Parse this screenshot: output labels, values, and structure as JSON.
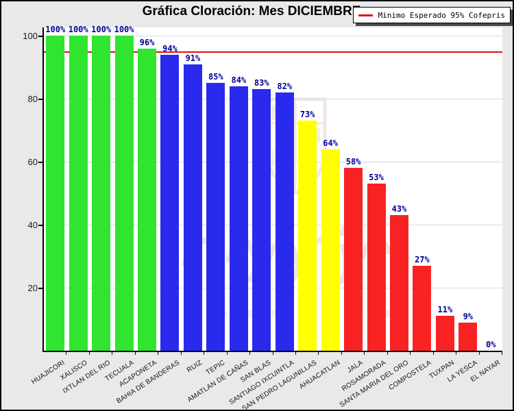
{
  "title": "Gráfica Cloración: Mes DICIEMBRE",
  "legend": {
    "label": "Minimo Esperado 95% Cofepris",
    "line_color": "#e01010"
  },
  "watermark": {
    "name": "faded-agency-seal-logo"
  },
  "chart_data": {
    "type": "bar",
    "title": "Gráfica Cloración: Mes DICIEMBRE",
    "xlabel": "",
    "ylabel": "",
    "ylim": [
      0,
      100
    ],
    "yticks": [
      20,
      40,
      60,
      80,
      100
    ],
    "grid": true,
    "legend_position": "top-right",
    "value_suffix": "%",
    "target_line": {
      "value": 95,
      "color": "#e01010",
      "label": "Minimo Esperado 95% Cofepris"
    },
    "palette": {
      "green": "#2fe52f",
      "blue": "#2a2aef",
      "yellow": "#ffff00",
      "red": "#f92222"
    },
    "points": [
      {
        "municipality": "HUAJICORI",
        "value": 100,
        "color": "green"
      },
      {
        "municipality": "XALISCO",
        "value": 100,
        "color": "green"
      },
      {
        "municipality": "IXTLAN DEL RIO",
        "value": 100,
        "color": "green"
      },
      {
        "municipality": "TECUALA",
        "value": 100,
        "color": "green"
      },
      {
        "municipality": "ACAPONETA",
        "value": 96,
        "color": "green"
      },
      {
        "municipality": "BAHIA DE BANDERAS",
        "value": 94,
        "color": "blue"
      },
      {
        "municipality": "RUIZ",
        "value": 91,
        "color": "blue"
      },
      {
        "municipality": "TEPIC",
        "value": 85,
        "color": "blue"
      },
      {
        "municipality": "AMATLAN DE CAÑAS",
        "value": 84,
        "color": "blue"
      },
      {
        "municipality": "SAN BLAS",
        "value": 83,
        "color": "blue"
      },
      {
        "municipality": "SANTIAGO IXCUINTLA",
        "value": 82,
        "color": "blue"
      },
      {
        "municipality": "SAN PEDRO LAGUNILLAS",
        "value": 73,
        "color": "yellow"
      },
      {
        "municipality": "AHUACATLAN",
        "value": 64,
        "color": "yellow"
      },
      {
        "municipality": "JALA",
        "value": 58,
        "color": "red"
      },
      {
        "municipality": "ROSAMORADA",
        "value": 53,
        "color": "red"
      },
      {
        "municipality": "SANTA MARIA DEL ORO",
        "value": 43,
        "color": "red"
      },
      {
        "municipality": "COMPOSTELA",
        "value": 27,
        "color": "red"
      },
      {
        "municipality": "TUXPAN",
        "value": 11,
        "color": "red"
      },
      {
        "municipality": "LA YESCA",
        "value": 9,
        "color": "red"
      },
      {
        "municipality": "EL NAYAR",
        "value": 0,
        "color": "red"
      }
    ]
  }
}
